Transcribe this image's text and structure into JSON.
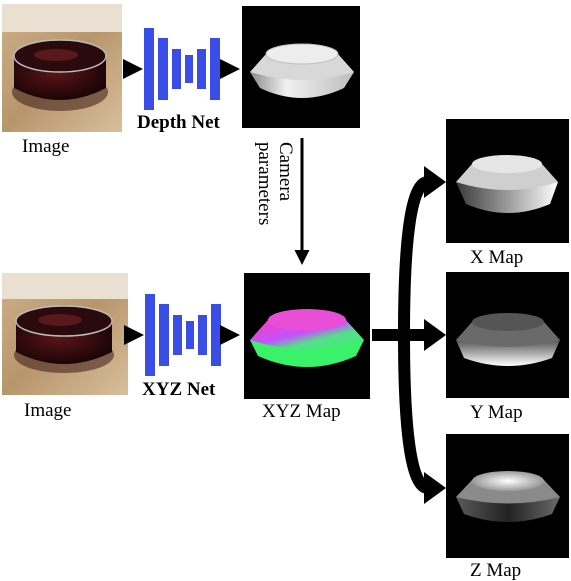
{
  "top_row": {
    "image_label": "Image",
    "net_label": "Depth Net",
    "camera_label_line1": "Camera",
    "camera_label_line2": "parameters"
  },
  "bottom_row": {
    "image_label": "Image",
    "net_label": "XYZ Net",
    "xyz_map_label": "XYZ Map"
  },
  "outputs": {
    "x_map_label": "X Map",
    "y_map_label": "Y Map",
    "z_map_label": "Z Map"
  },
  "colors": {
    "network_bars": "#3a4de6",
    "arrows": "#000000",
    "map_background": "#000000"
  }
}
